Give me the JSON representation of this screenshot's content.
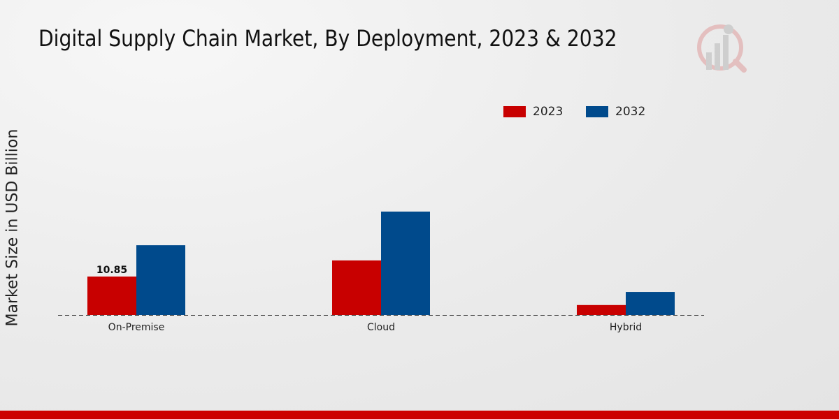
{
  "title": "Digital Supply Chain Market, By Deployment, 2023 & 2032",
  "colors": {
    "2023": "#c80000",
    "2032": "#004a8c",
    "footer": "#cc0000"
  },
  "chart_data": {
    "type": "bar",
    "title": "Digital Supply Chain Market, By Deployment, 2023 & 2032",
    "xlabel": "",
    "ylabel": "Market Size in USD Billion",
    "categories": [
      "On-Premise",
      "Cloud",
      "Hybrid"
    ],
    "series": [
      {
        "name": "2023",
        "values": [
          10.85,
          15.4,
          2.8
        ]
      },
      {
        "name": "2032",
        "values": [
          19.7,
          29.2,
          6.5
        ]
      }
    ],
    "data_labels": [
      {
        "series": "2023",
        "category": "On-Premise",
        "text": "10.85"
      }
    ],
    "ylim": [
      0,
      35
    ],
    "grid": false,
    "legend": "top-right"
  }
}
